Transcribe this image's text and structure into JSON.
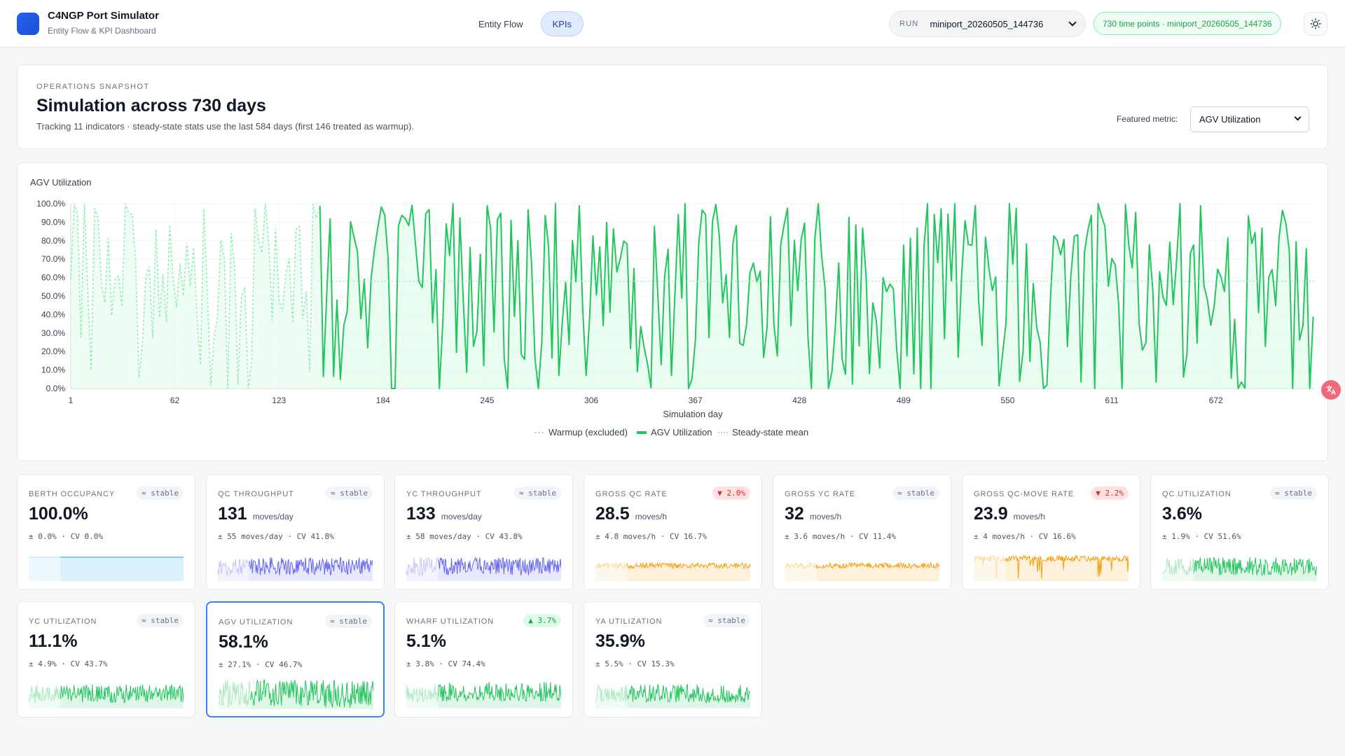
{
  "app": {
    "title": "C4NGP Port Simulator",
    "subtitle": "Entity Flow & KPI Dashboard",
    "brand_color": "#2563eb"
  },
  "nav": {
    "tabs": [
      {
        "label": "Entity Flow",
        "active": false
      },
      {
        "label": "KPIs",
        "active": true
      }
    ]
  },
  "run": {
    "tag": "RUN",
    "selected": "miniport_20260505_144736",
    "status": "730 time points · miniport_20260505_144736"
  },
  "icons": {
    "theme": "sun-icon",
    "dropdown": "chevron-down-icon",
    "floating": "translate-icon"
  },
  "snapshot": {
    "eyebrow": "OPERATIONS SNAPSHOT",
    "title": "Simulation across 730 days",
    "description": "Tracking 11 indicators · steady-state stats use the last 584 days (first 146 treated as warmup).",
    "featured_label": "Featured metric:",
    "featured_value": "AGV Utilization"
  },
  "chart_data": {
    "type": "line",
    "title": "AGV Utilization",
    "xlabel": "Simulation day",
    "ylabel": "",
    "x_range": [
      1,
      730
    ],
    "x_ticks": [
      "1",
      "62",
      "123",
      "184",
      "245",
      "306",
      "367",
      "428",
      "489",
      "550",
      "611",
      "672"
    ],
    "y_ticks": [
      "0.0%",
      "10.0%",
      "20.0%",
      "30.0%",
      "40.0%",
      "50.0%",
      "60.0%",
      "70.0%",
      "80.0%",
      "90.0%",
      "100.0%"
    ],
    "ylim": [
      0,
      100
    ],
    "warmup_days": 146,
    "steady_state_mean": 58.1,
    "series_note": "Daily values oscillate between roughly 0% and 100% throughout the run",
    "legend": [
      "Warmup (excluded)",
      "AGV Utilization",
      "Steady-state mean"
    ],
    "legend_position": "bottom-center",
    "colors": {
      "line": "#22c55e",
      "warmup": "#86efac",
      "fill": "#dcfce7",
      "mean": "#86efac"
    }
  },
  "kpis": [
    {
      "name": "BERTH OCCUPANCY",
      "badge": "≈ stable",
      "trend": "stable",
      "value": "100.0%",
      "unit": "",
      "stats": "± 0.0% · CV 0.0%",
      "color": "#0ea5e9",
      "spark": "flat",
      "selected": false
    },
    {
      "name": "QC THROUGHPUT",
      "badge": "≈ stable",
      "trend": "stable",
      "value": "131",
      "unit": "moves/day",
      "stats": "± 55 moves/day · CV 41.8%",
      "color": "#6366f1",
      "spark": "noisy",
      "selected": false
    },
    {
      "name": "YC THROUGHPUT",
      "badge": "≈ stable",
      "trend": "stable",
      "value": "133",
      "unit": "moves/day",
      "stats": "± 58 moves/day · CV 43.8%",
      "color": "#6366f1",
      "spark": "noisy",
      "selected": false
    },
    {
      "name": "GROSS QC RATE",
      "badge": "▼ 2.0%",
      "trend": "down",
      "value": "28.5",
      "unit": "moves/h",
      "stats": "± 4.8 moves/h · CV 16.7%",
      "color": "#f59e0b",
      "spark": "band",
      "selected": false
    },
    {
      "name": "GROSS YC RATE",
      "badge": "≈ stable",
      "trend": "stable",
      "value": "32",
      "unit": "moves/h",
      "stats": "± 3.6 moves/h · CV 11.4%",
      "color": "#f59e0b",
      "spark": "band",
      "selected": false
    },
    {
      "name": "GROSS QC-MOVE RATE",
      "badge": "▼ 2.2%",
      "trend": "down",
      "value": "23.9",
      "unit": "moves/h",
      "stats": "± 4 moves/h · CV 16.6%",
      "color": "#f59e0b",
      "spark": "spiky-down",
      "selected": false
    },
    {
      "name": "QC UTILIZATION",
      "badge": "≈ stable",
      "trend": "stable",
      "value": "3.6%",
      "unit": "",
      "stats": "± 1.9% · CV 51.6%",
      "color": "#22c55e",
      "spark": "noisy",
      "selected": false
    },
    {
      "name": "YC UTILIZATION",
      "badge": "≈ stable",
      "trend": "stable",
      "value": "11.1%",
      "unit": "",
      "stats": "± 4.9% · CV 43.7%",
      "color": "#22c55e",
      "spark": "noisy",
      "selected": false
    },
    {
      "name": "AGV UTILIZATION",
      "badge": "≈ stable",
      "trend": "stable",
      "value": "58.1%",
      "unit": "",
      "stats": "± 27.1% · CV 46.7%",
      "color": "#22c55e",
      "spark": "full",
      "selected": true
    },
    {
      "name": "WHARF UTILIZATION",
      "badge": "▲ 3.7%",
      "trend": "up",
      "value": "5.1%",
      "unit": "",
      "stats": "± 3.8% · CV 74.4%",
      "color": "#22c55e",
      "spark": "spiky-up",
      "selected": false
    },
    {
      "name": "YA UTILIZATION",
      "badge": "≈ stable",
      "trend": "stable",
      "value": "35.9%",
      "unit": "",
      "stats": "± 5.5% · CV 15.3%",
      "color": "#22c55e",
      "spark": "noisy",
      "selected": false
    }
  ]
}
